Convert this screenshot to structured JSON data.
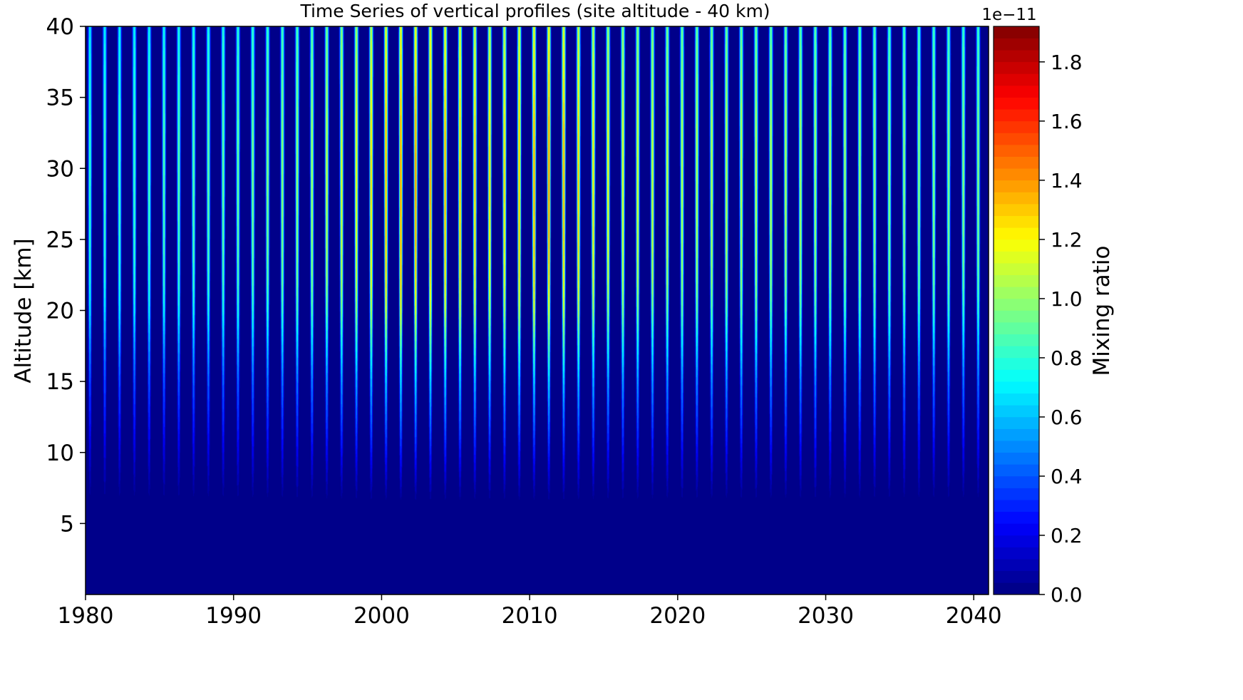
{
  "chart_data": {
    "type": "heatmap",
    "title": "Time Series of vertical profiles (site altitude - 40 km)",
    "xlabel": "",
    "ylabel": "Altitude [km]",
    "xlim": [
      1980,
      2041
    ],
    "ylim": [
      0,
      40
    ],
    "x_ticks": [
      1980,
      1990,
      2000,
      2010,
      2020,
      2030,
      2040
    ],
    "x_tick_labels": [
      "1980",
      "1990",
      "2000",
      "2010",
      "2020",
      "2030",
      "2040"
    ],
    "y_ticks": [
      5,
      10,
      15,
      20,
      25,
      30,
      35,
      40
    ],
    "y_tick_labels": [
      "5",
      "10",
      "15",
      "20",
      "25",
      "30",
      "35",
      "40"
    ],
    "colormap": "jet",
    "colorbar": {
      "label": "Mixing ratio",
      "offset_text": "1e−11",
      "range": [
        0.0,
        1.92
      ],
      "ticks": [
        0.0,
        0.2,
        0.4,
        0.6,
        0.8,
        1.0,
        1.2,
        1.4,
        1.6,
        1.8
      ],
      "tick_labels": [
        "0.0",
        "0.2",
        "0.4",
        "0.6",
        "0.8",
        "1.0",
        "1.2",
        "1.4",
        "1.6",
        "1.8"
      ],
      "levels": 48
    },
    "seasonal_cycles": {
      "period_years": 1,
      "first_peak_year": 1980.3,
      "peak_count": 61
    },
    "vertical_profile": {
      "altitude_km": [
        0,
        5,
        6.5,
        8,
        10,
        12,
        15,
        18,
        20,
        22,
        25,
        28,
        30,
        33,
        35,
        40
      ],
      "peak_mixing_ratio_e11": [
        0.0,
        0.0,
        0.02,
        0.12,
        0.25,
        0.38,
        0.55,
        0.78,
        0.95,
        1.05,
        1.1,
        1.12,
        1.12,
        1.1,
        1.05,
        0.95
      ]
    },
    "peak_amplitude_by_year": {
      "year": [
        1980,
        1985,
        1990,
        1995,
        1998,
        2001,
        2004,
        2008,
        2011,
        2015,
        2020,
        2025,
        2030,
        2035,
        2040
      ],
      "relative_amplitude": [
        0.75,
        0.8,
        0.85,
        0.95,
        1.08,
        1.3,
        1.25,
        1.15,
        1.3,
        1.1,
        1.0,
        1.0,
        0.95,
        0.92,
        0.9
      ]
    }
  }
}
